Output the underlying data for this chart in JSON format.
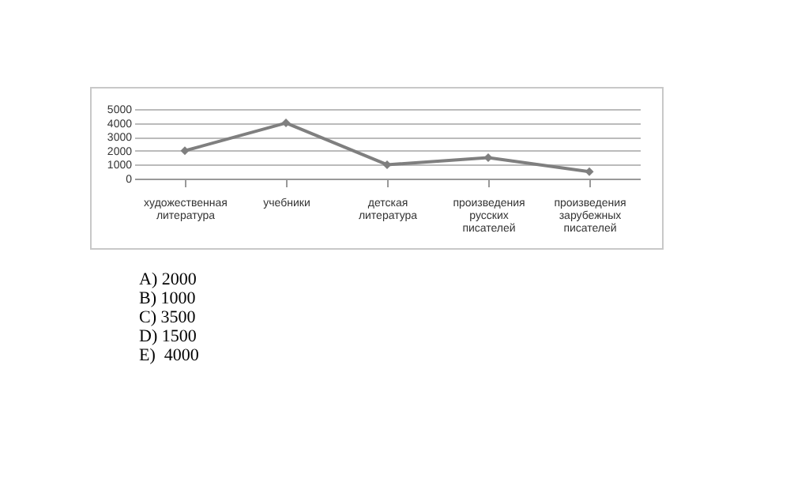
{
  "chart_data": {
    "type": "line",
    "categories": [
      "художественная литература",
      "учебники",
      "детская литература",
      "произведения русских писателей",
      "произведения зарубежных писателей"
    ],
    "series": [
      {
        "color": "#7f7f7f",
        "values": [
          2000,
          4000,
          1000,
          1500,
          500
        ]
      }
    ],
    "ylim": [
      0,
      5000
    ],
    "yticks": [
      0,
      1000,
      2000,
      3000,
      4000,
      5000
    ],
    "grid": "y",
    "marker": "diamond",
    "line_style": "solid",
    "annotations": [
      "A) 2000",
      "B) 1000",
      "C) 3500",
      "D) 1500",
      "E)  4000"
    ]
  }
}
